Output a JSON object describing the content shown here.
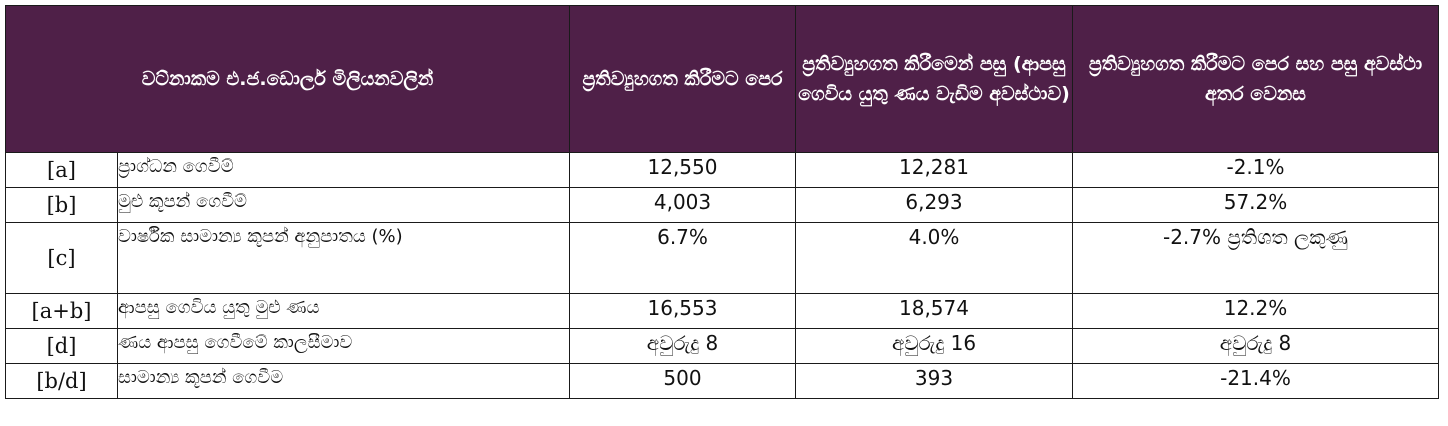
{
  "table": {
    "headers": {
      "unit": "වට්නාකම එ.ජ.ඩොලර් මිලියනවලින්",
      "before": "ප්‍රතිව්‍යුහගත කිරීමට පෙර",
      "after": "ප්‍රතිව්‍යුහගත කිරීමෙන් පසු (ආපසු ගෙවිය යුතු ණය වැඩිම අවස්ථාව)",
      "diff": "ප්‍රතිව්‍යුහගත කිරීමට පෙර සහ පසු අවස්ථා අතර වෙනස"
    },
    "rows": [
      {
        "code": "[a]",
        "label": "ප්‍රාග්ධන ගෙවීම්",
        "before": "12,550",
        "after": "12,281",
        "diff": "-2.1%"
      },
      {
        "code": "[b]",
        "label": "මුළු කූපන් ගෙවීම්",
        "before": "4,003",
        "after": "6,293",
        "diff": "57.2%"
      },
      {
        "code": "[c]",
        "label": "වාර්ෂික සාමාන්‍ය කූපන් අනුපාතය (%)",
        "before": "6.7%",
        "after": "4.0%",
        "diff": "-2.7% ප්‍රතිශත ලකුණු"
      },
      {
        "code": "[a+b]",
        "label": "ආපසු ගෙවිය යුතු මුළු ණය",
        "before": "16,553",
        "after": "18,574",
        "diff": "12.2%"
      },
      {
        "code": "[d]",
        "label": "ණය ආපසු ගෙවීමේ කාලසීමාව",
        "before": "අවුරුදු 8",
        "after": "අවුරුදු 16",
        "diff": "අවුරුදු 8"
      },
      {
        "code": "[b/d]",
        "label": "සාමාන්‍ය කූපන් ගෙවීම",
        "before": "500",
        "after": "393",
        "diff": "-21.4%"
      }
    ]
  }
}
